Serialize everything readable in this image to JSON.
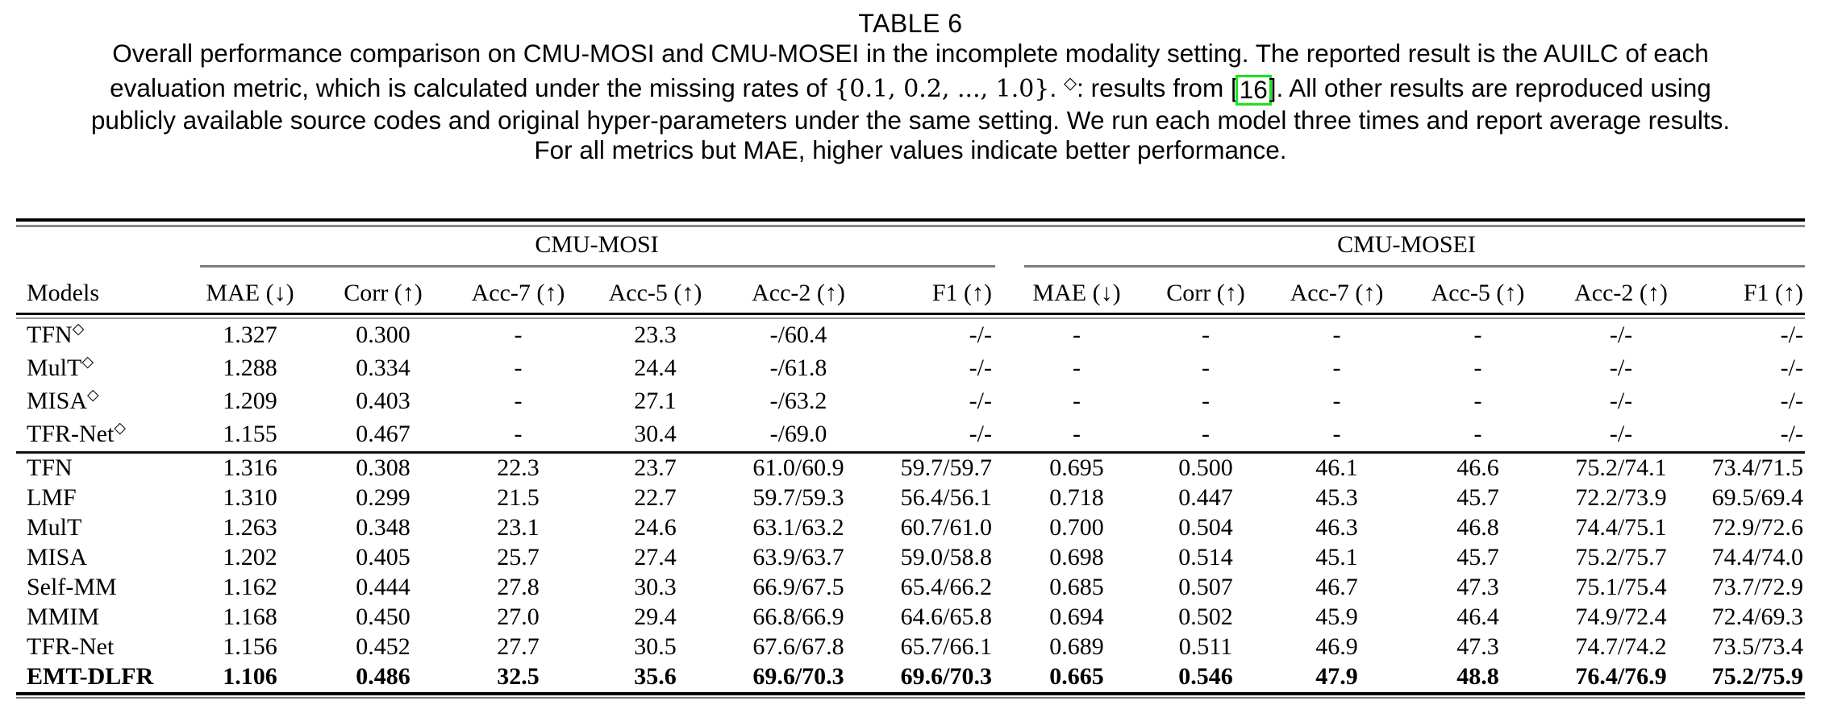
{
  "colors": {
    "citation_box_green": "#1be41b"
  },
  "caption": {
    "title": "TABLE 6",
    "line1": "Overall performance comparison on CMU-MOSI and CMU-MOSEI in the incomplete modality setting. The reported result is the AUILC of each",
    "line2_pre": "evaluation metric, which is calculated under the missing rates of ",
    "line2_math": "{0.1, 0.2, ..., 1.0}",
    "line2_after_math": ". ",
    "line2_diamond": "◇",
    "line2_mid": ": results from ",
    "line2_bracket_open": "[",
    "line2_cite": "16",
    "line2_bracket_close": "]",
    "line2_tail": ". All other results are reproduced using",
    "line3": "publicly available source codes and original hyper-parameters under the same setting. We run each model three times and report average results.",
    "line4": "For all metrics but MAE, higher values indicate better performance."
  },
  "table": {
    "models_header": "Models",
    "group1": "CMU-MOSI",
    "group2": "CMU-MOSEI",
    "metrics": [
      "MAE (↓)",
      "Corr (↑)",
      "Acc-7 (↑)",
      "Acc-5 (↑)",
      "Acc-2 (↑)",
      "F1 (↑)"
    ],
    "section1": [
      {
        "model": "TFN",
        "sup": "◇",
        "values": [
          "1.327",
          "0.300",
          "-",
          "23.3",
          "-/60.4",
          "-/-",
          "-",
          "-",
          "-",
          "-",
          "-/-",
          "-/-"
        ]
      },
      {
        "model": "MulT",
        "sup": "◇",
        "values": [
          "1.288",
          "0.334",
          "-",
          "24.4",
          "-/61.8",
          "-/-",
          "-",
          "-",
          "-",
          "-",
          "-/-",
          "-/-"
        ]
      },
      {
        "model": "MISA",
        "sup": "◇",
        "values": [
          "1.209",
          "0.403",
          "-",
          "27.1",
          "-/63.2",
          "-/-",
          "-",
          "-",
          "-",
          "-",
          "-/-",
          "-/-"
        ]
      },
      {
        "model": "TFR-Net",
        "sup": "◇",
        "values": [
          "1.155",
          "0.467",
          "-",
          "30.4",
          "-/69.0",
          "-/-",
          "-",
          "-",
          "-",
          "-",
          "-/-",
          "-/-"
        ]
      }
    ],
    "section2": [
      {
        "model": "TFN",
        "values": [
          "1.316",
          "0.308",
          "22.3",
          "23.7",
          "61.0/60.9",
          "59.7/59.7",
          "0.695",
          "0.500",
          "46.1",
          "46.6",
          "75.2/74.1",
          "73.4/71.5"
        ]
      },
      {
        "model": "LMF",
        "values": [
          "1.310",
          "0.299",
          "21.5",
          "22.7",
          "59.7/59.3",
          "56.4/56.1",
          "0.718",
          "0.447",
          "45.3",
          "45.7",
          "72.2/73.9",
          "69.5/69.4"
        ]
      },
      {
        "model": "MulT",
        "values": [
          "1.263",
          "0.348",
          "23.1",
          "24.6",
          "63.1/63.2",
          "60.7/61.0",
          "0.700",
          "0.504",
          "46.3",
          "46.8",
          "74.4/75.1",
          "72.9/72.6"
        ]
      },
      {
        "model": "MISA",
        "values": [
          "1.202",
          "0.405",
          "25.7",
          "27.4",
          "63.9/63.7",
          "59.0/58.8",
          "0.698",
          "0.514",
          "45.1",
          "45.7",
          "75.2/75.7",
          "74.4/74.0"
        ]
      },
      {
        "model": "Self-MM",
        "values": [
          "1.162",
          "0.444",
          "27.8",
          "30.3",
          "66.9/67.5",
          "65.4/66.2",
          "0.685",
          "0.507",
          "46.7",
          "47.3",
          "75.1/75.4",
          "73.7/72.9"
        ]
      },
      {
        "model": "MMIM",
        "values": [
          "1.168",
          "0.450",
          "27.0",
          "29.4",
          "66.8/66.9",
          "64.6/65.8",
          "0.694",
          "0.502",
          "45.9",
          "46.4",
          "74.9/72.4",
          "72.4/69.3"
        ]
      },
      {
        "model": "TFR-Net",
        "values": [
          "1.156",
          "0.452",
          "27.7",
          "30.5",
          "67.6/67.8",
          "65.7/66.1",
          "0.689",
          "0.511",
          "46.9",
          "47.3",
          "74.7/74.2",
          "73.5/73.4"
        ]
      },
      {
        "model": "EMT-DLFR",
        "bold": true,
        "values": [
          "1.106",
          "0.486",
          "32.5",
          "35.6",
          "69.6/70.3",
          "69.6/70.3",
          "0.665",
          "0.546",
          "47.9",
          "48.8",
          "76.4/76.9",
          "75.2/75.9"
        ]
      }
    ]
  }
}
